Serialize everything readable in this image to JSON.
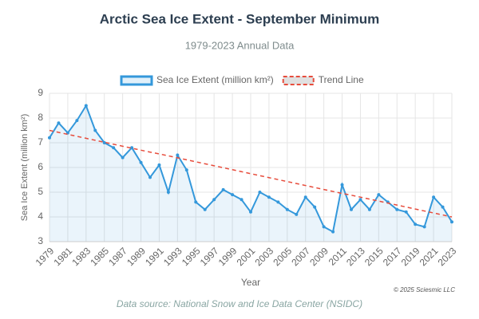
{
  "chart_data": {
    "type": "line",
    "title": "Arctic Sea Ice Extent - September Minimum",
    "subtitle": "1979-2023 Annual Data",
    "xlabel": "Year",
    "ylabel": "Sea Ice Extent (million km²)",
    "source": "Data source: National Snow and Ice Data Center (NSIDC)",
    "copyright": "© 2025 Sciesmic LLC",
    "x": [
      1979,
      1980,
      1981,
      1982,
      1983,
      1984,
      1985,
      1986,
      1987,
      1988,
      1989,
      1990,
      1991,
      1992,
      1993,
      1994,
      1995,
      1996,
      1997,
      1998,
      1999,
      2000,
      2001,
      2002,
      2003,
      2004,
      2005,
      2006,
      2007,
      2008,
      2009,
      2010,
      2011,
      2012,
      2013,
      2014,
      2015,
      2016,
      2017,
      2018,
      2019,
      2020,
      2021,
      2022,
      2023
    ],
    "series": [
      {
        "name": "Sea Ice Extent (million km²)",
        "color": "#3498db",
        "fill": "rgba(52,152,219,0.1)",
        "values": [
          7.2,
          7.8,
          7.4,
          7.9,
          8.5,
          7.5,
          7.0,
          6.8,
          6.4,
          6.8,
          6.2,
          5.6,
          6.1,
          5.0,
          6.5,
          5.9,
          4.6,
          4.3,
          4.7,
          5.1,
          4.9,
          4.7,
          4.2,
          5.0,
          4.8,
          4.6,
          4.3,
          4.1,
          4.8,
          4.4,
          3.6,
          3.4,
          5.3,
          4.3,
          4.7,
          4.3,
          4.9,
          4.6,
          4.3,
          4.2,
          3.7,
          3.6,
          4.8,
          4.4,
          3.8
        ]
      },
      {
        "name": "Trend Line",
        "color": "#e74c3c",
        "dashed": true,
        "values": [
          7.5,
          7.42,
          7.34,
          7.26,
          7.18,
          7.1,
          7.02,
          6.94,
          6.86,
          6.78,
          6.7,
          6.62,
          6.55,
          6.47,
          6.39,
          6.31,
          6.23,
          6.15,
          6.07,
          5.99,
          5.91,
          5.83,
          5.75,
          5.67,
          5.59,
          5.51,
          5.43,
          5.35,
          5.27,
          5.19,
          5.11,
          5.03,
          4.95,
          4.88,
          4.8,
          4.72,
          4.64,
          4.56,
          4.48,
          4.4,
          4.32,
          4.24,
          4.16,
          4.08,
          4.0
        ]
      }
    ],
    "xlim": [
      1979,
      2023
    ],
    "xticks": [
      1979,
      1981,
      1983,
      1985,
      1987,
      1989,
      1991,
      1993,
      1995,
      1997,
      1999,
      2001,
      2003,
      2005,
      2007,
      2009,
      2011,
      2013,
      2015,
      2017,
      2019,
      2021,
      2023
    ],
    "ylim": [
      3,
      9
    ],
    "yticks": [
      3,
      4,
      5,
      6,
      7,
      8,
      9
    ],
    "grid": true,
    "legend": "top"
  }
}
